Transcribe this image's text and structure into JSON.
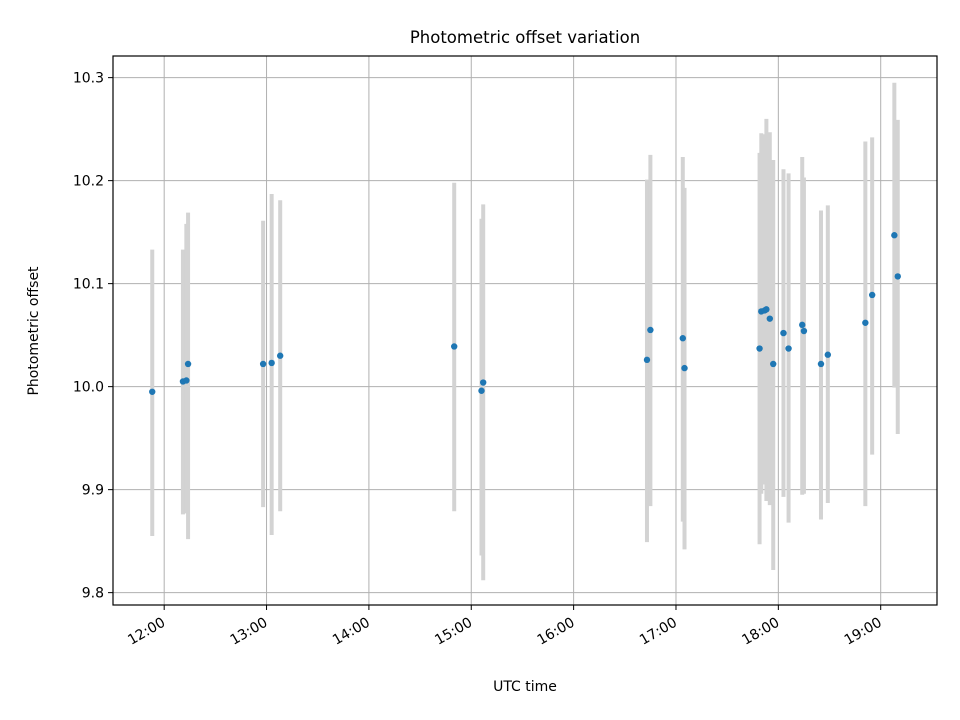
{
  "chart_data": {
    "type": "scatter",
    "title": "Photometric offset variation",
    "xlabel": "UTC time",
    "ylabel": "Photometric offset",
    "grid": true,
    "xlim": [
      "11:30",
      "19:33"
    ],
    "ylim": [
      9.788,
      10.321
    ],
    "x_ticks": [
      "12:00",
      "13:00",
      "14:00",
      "15:00",
      "16:00",
      "17:00",
      "18:00",
      "19:00"
    ],
    "y_ticks": [
      "9.8",
      "9.9",
      "10.0",
      "10.1",
      "10.2",
      "10.3"
    ],
    "colors": {
      "points": "#1f77b4",
      "errorbars": "#d3d3d3",
      "grid": "#b0b0b0"
    },
    "points": [
      {
        "time": "11:53",
        "y": 9.995,
        "ylo": 9.855,
        "yhi": 10.133
      },
      {
        "time": "12:11",
        "y": 10.005,
        "ylo": 9.876,
        "yhi": 10.133
      },
      {
        "time": "12:13",
        "y": 10.006,
        "ylo": 9.877,
        "yhi": 10.158
      },
      {
        "time": "12:14",
        "y": 10.022,
        "ylo": 9.852,
        "yhi": 10.169
      },
      {
        "time": "12:58",
        "y": 10.022,
        "ylo": 9.883,
        "yhi": 10.161
      },
      {
        "time": "13:03",
        "y": 10.023,
        "ylo": 9.856,
        "yhi": 10.187
      },
      {
        "time": "13:08",
        "y": 10.03,
        "ylo": 9.879,
        "yhi": 10.181
      },
      {
        "time": "14:50",
        "y": 10.039,
        "ylo": 9.879,
        "yhi": 10.198
      },
      {
        "time": "15:06",
        "y": 9.996,
        "ylo": 9.836,
        "yhi": 10.163
      },
      {
        "time": "15:07",
        "y": 10.004,
        "ylo": 9.812,
        "yhi": 10.177
      },
      {
        "time": "16:43",
        "y": 10.026,
        "ylo": 9.849,
        "yhi": 10.201
      },
      {
        "time": "16:45",
        "y": 10.055,
        "ylo": 9.884,
        "yhi": 10.225
      },
      {
        "time": "17:04",
        "y": 10.047,
        "ylo": 9.869,
        "yhi": 10.223
      },
      {
        "time": "17:05",
        "y": 10.018,
        "ylo": 9.842,
        "yhi": 10.193
      },
      {
        "time": "17:49",
        "y": 10.037,
        "ylo": 9.847,
        "yhi": 10.227
      },
      {
        "time": "17:50",
        "y": 10.073,
        "ylo": 9.896,
        "yhi": 10.246
      },
      {
        "time": "17:52",
        "y": 10.074,
        "ylo": 9.905,
        "yhi": 10.245
      },
      {
        "time": "17:53",
        "y": 10.075,
        "ylo": 9.889,
        "yhi": 10.26
      },
      {
        "time": "17:55",
        "y": 10.066,
        "ylo": 9.885,
        "yhi": 10.247
      },
      {
        "time": "17:57",
        "y": 10.022,
        "ylo": 9.822,
        "yhi": 10.22
      },
      {
        "time": "18:03",
        "y": 10.052,
        "ylo": 9.893,
        "yhi": 10.211
      },
      {
        "time": "18:06",
        "y": 10.037,
        "ylo": 9.868,
        "yhi": 10.207
      },
      {
        "time": "18:14",
        "y": 10.06,
        "ylo": 9.895,
        "yhi": 10.223
      },
      {
        "time": "18:15",
        "y": 10.054,
        "ylo": 9.896,
        "yhi": 10.203
      },
      {
        "time": "18:25",
        "y": 10.022,
        "ylo": 9.871,
        "yhi": 10.171
      },
      {
        "time": "18:29",
        "y": 10.031,
        "ylo": 9.887,
        "yhi": 10.176
      },
      {
        "time": "18:51",
        "y": 10.062,
        "ylo": 9.884,
        "yhi": 10.238
      },
      {
        "time": "18:55",
        "y": 10.089,
        "ylo": 9.934,
        "yhi": 10.242
      },
      {
        "time": "19:08",
        "y": 10.147,
        "ylo": 9.999,
        "yhi": 10.295
      },
      {
        "time": "19:10",
        "y": 10.107,
        "ylo": 9.954,
        "yhi": 10.259
      }
    ]
  }
}
